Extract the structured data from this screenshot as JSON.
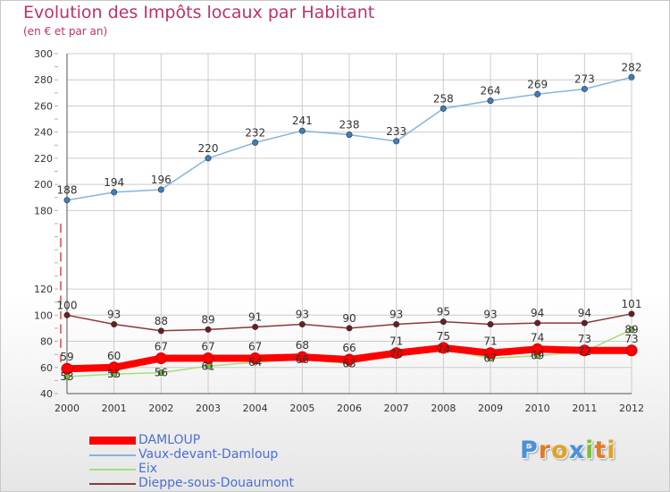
{
  "title": "Evolution des Impôts locaux par Habitant",
  "subtitle": "(en € et par an)",
  "logo": "Proxiti",
  "colors": {
    "title": "#c0306a",
    "damloup": "#ff0000",
    "vaux": "#88b4d9",
    "vaux_marker": "#3b7fc0",
    "eix": "#a6de7a",
    "eix_marker": "#6cc63c",
    "dieppe": "#8b3a3a",
    "dieppe_marker": "#6b1e1e",
    "legend_text": "#4a6fd8",
    "grid": "#cccccc"
  },
  "chart_data": {
    "type": "line",
    "title": "Evolution des Impôts locaux par Habitant",
    "subtitle": "(en € et par an)",
    "xlabel": "",
    "ylabel": "",
    "x": [
      "2000",
      "2001",
      "2002",
      "2003",
      "2004",
      "2005",
      "2006",
      "2007",
      "2008",
      "2009",
      "2010",
      "2011",
      "2012"
    ],
    "y_ticks": [
      40,
      60,
      80,
      100,
      120,
      180,
      200,
      220,
      240,
      260,
      280,
      300
    ],
    "ylim": [
      40,
      300
    ],
    "grid": true,
    "legend_position": "bottom-left",
    "series": [
      {
        "name": "DAMLOUP",
        "key": "damloup",
        "values": [
          59,
          60,
          67,
          67,
          67,
          68,
          66,
          71,
          75,
          71,
          74,
          73,
          73
        ],
        "labels": [
          "59",
          "60",
          "67",
          "67",
          "67",
          "68",
          "66",
          "71",
          "75",
          "71",
          "74",
          "73",
          "73"
        ],
        "stroke_width": 8,
        "marker_radius": 6
      },
      {
        "name": "Vaux-devant-Damloup",
        "key": "vaux",
        "values": [
          188,
          194,
          196,
          220,
          232,
          241,
          238,
          233,
          258,
          264,
          269,
          273,
          282
        ],
        "labels": [
          "188",
          "194",
          "196",
          "220",
          "232",
          "241",
          "238",
          "233",
          "258",
          "264",
          "269",
          "273",
          "282"
        ],
        "stroke_width": 1.5,
        "marker_radius": 3.2
      },
      {
        "name": "Eix",
        "key": "eix",
        "values": [
          53,
          55,
          56,
          61,
          64,
          66,
          63,
          70,
          74,
          67,
          69,
          72,
          89
        ],
        "labels": [
          "53",
          "55",
          "56",
          "61",
          "64",
          "66",
          "63",
          "70",
          "74",
          "67",
          "69",
          "72",
          "89"
        ],
        "stroke_width": 1.5,
        "marker_radius": 3.2
      },
      {
        "name": "Dieppe-sous-Douaumont",
        "key": "dieppe",
        "values": [
          100,
          93,
          88,
          89,
          91,
          93,
          90,
          93,
          95,
          93,
          94,
          94,
          101
        ],
        "labels": [
          "100",
          "93",
          "88",
          "89",
          "91",
          "93",
          "90",
          "93",
          "95",
          "93",
          "94",
          "94",
          "101"
        ],
        "stroke_width": 1.5,
        "marker_radius": 3.2
      }
    ]
  }
}
